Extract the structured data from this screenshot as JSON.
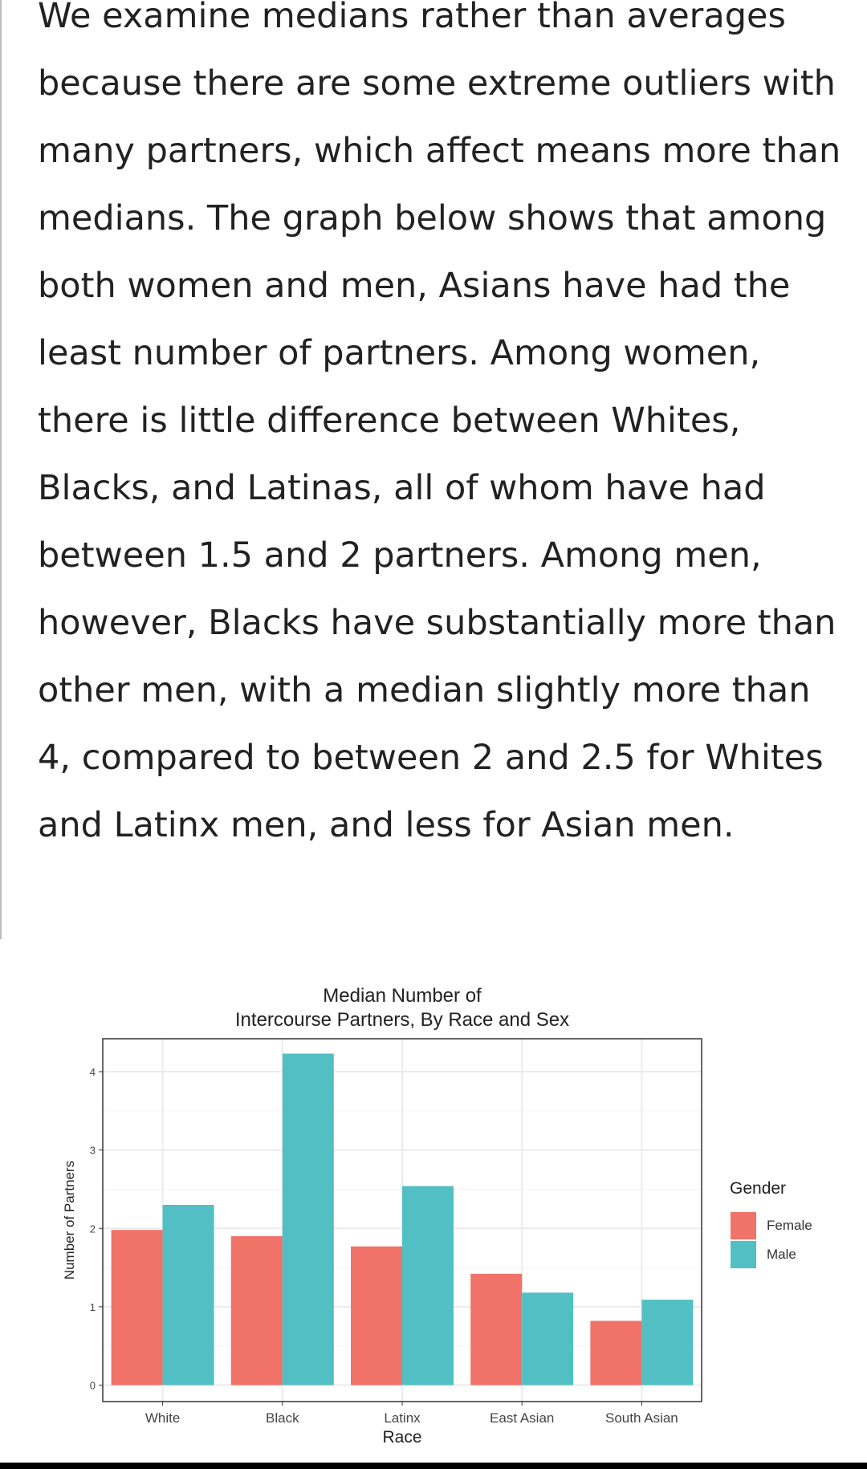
{
  "article": {
    "paragraph": "We examine medians rather than averages because there are some extreme outliers with many partners, which affect means more than medians. The graph below shows that among both women and men, Asians have had the least number of partners. Among women, there is little difference between Whites, Blacks, and Latinas, all of whom have had between 1.5 and 2 partners. Among men, however, Blacks have substantially more than other men, with a median slightly more than 4, compared to between 2 and 2.5 for Whites and Latinx men, and less for Asian men."
  },
  "chart_data": {
    "type": "bar",
    "title": "Median Number of",
    "title_line2": "Intercourse Partners, By Race and Sex",
    "xlabel": "Race",
    "ylabel": "Number of Partners",
    "categories": [
      "White",
      "Black",
      "Latinx",
      "East Asian",
      "South Asian"
    ],
    "series": [
      {
        "name": "Female",
        "color": "#F07268",
        "values": [
          1.98,
          1.9,
          1.77,
          1.42,
          0.82
        ]
      },
      {
        "name": "Male",
        "color": "#52BFC4",
        "values": [
          2.3,
          4.23,
          2.54,
          1.18,
          1.09
        ]
      }
    ],
    "yticks": [
      "0",
      "1",
      "2",
      "3",
      "4"
    ],
    "ylim": [
      -0.21,
      4.42
    ],
    "legend_title": "Gender",
    "legend_position": "right",
    "grid": true
  }
}
